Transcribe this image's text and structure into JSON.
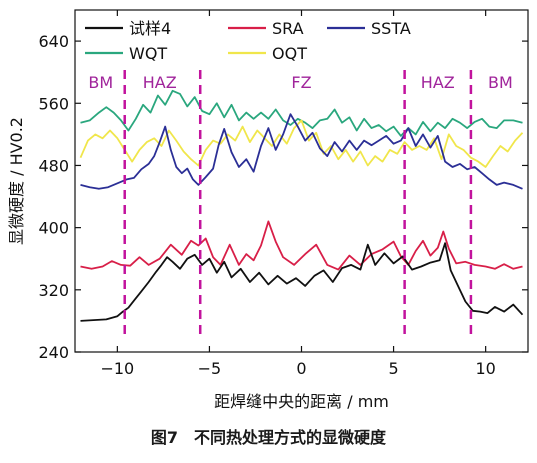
{
  "caption": "图7　不同热处理方式的显微硬度",
  "chart_data": {
    "type": "line",
    "xlabel": "距焊缝中央的距离 / mm",
    "ylabel": "显微硬度 / HV0.2",
    "xlim": [
      -12.3,
      12.3
    ],
    "ylim": [
      240,
      680
    ],
    "xticks": [
      -10,
      -5,
      0,
      5,
      10
    ],
    "xtick_labels": [
      "−10",
      "−5",
      "0",
      "5",
      "10"
    ],
    "yticks": [
      240,
      320,
      400,
      480,
      560,
      640
    ],
    "grid": false,
    "legend_position": "top",
    "zone_boundaries_x": [
      -9.6,
      -5.5,
      5.6,
      9.2
    ],
    "zone_labels": [
      {
        "label": "BM",
        "x": -10.9
      },
      {
        "label": "HAZ",
        "x": -7.7
      },
      {
        "label": "FZ",
        "x": 0
      },
      {
        "label": "HAZ",
        "x": 7.4
      },
      {
        "label": "BM",
        "x": 10.8
      }
    ],
    "series": [
      {
        "name": "试样4",
        "color": "#111111",
        "points": [
          [
            -12,
            280
          ],
          [
            -11.3,
            281
          ],
          [
            -10.6,
            282
          ],
          [
            -10,
            286
          ],
          [
            -9.7,
            292
          ],
          [
            -9.4,
            297
          ],
          [
            -9.1,
            306
          ],
          [
            -8.7,
            318
          ],
          [
            -8.3,
            330
          ],
          [
            -7.9,
            343
          ],
          [
            -7.6,
            352
          ],
          [
            -7.3,
            362
          ],
          [
            -7.0,
            356
          ],
          [
            -6.6,
            347
          ],
          [
            -6.2,
            360
          ],
          [
            -5.8,
            365
          ],
          [
            -5.4,
            352
          ],
          [
            -5.0,
            360
          ],
          [
            -4.6,
            342
          ],
          [
            -4.2,
            356
          ],
          [
            -3.8,
            336
          ],
          [
            -3.3,
            347
          ],
          [
            -2.8,
            330
          ],
          [
            -2.3,
            342
          ],
          [
            -1.8,
            327
          ],
          [
            -1.3,
            338
          ],
          [
            -0.8,
            328
          ],
          [
            -0.3,
            335
          ],
          [
            0.2,
            325
          ],
          [
            0.7,
            338
          ],
          [
            1.2,
            345
          ],
          [
            1.7,
            330
          ],
          [
            2.2,
            348
          ],
          [
            2.7,
            352
          ],
          [
            3.2,
            346
          ],
          [
            3.6,
            378
          ],
          [
            4.0,
            352
          ],
          [
            4.5,
            367
          ],
          [
            5.0,
            354
          ],
          [
            5.5,
            363
          ],
          [
            6.0,
            346
          ],
          [
            6.5,
            350
          ],
          [
            7.0,
            355
          ],
          [
            7.5,
            358
          ],
          [
            7.8,
            380
          ],
          [
            8.1,
            345
          ],
          [
            8.5,
            325
          ],
          [
            8.9,
            305
          ],
          [
            9.3,
            293
          ],
          [
            9.7,
            292
          ],
          [
            10.1,
            290
          ],
          [
            10.5,
            298
          ],
          [
            11.0,
            292
          ],
          [
            11.5,
            301
          ],
          [
            12,
            288
          ]
        ]
      },
      {
        "name": "SRA",
        "color": "#d81f48",
        "points": [
          [
            -12,
            350
          ],
          [
            -11.4,
            347
          ],
          [
            -10.8,
            350
          ],
          [
            -10.3,
            357
          ],
          [
            -9.8,
            352
          ],
          [
            -9.3,
            351
          ],
          [
            -8.8,
            362
          ],
          [
            -8.3,
            352
          ],
          [
            -7.7,
            360
          ],
          [
            -7.1,
            378
          ],
          [
            -6.5,
            365
          ],
          [
            -6.0,
            383
          ],
          [
            -5.6,
            377
          ],
          [
            -5.2,
            386
          ],
          [
            -4.8,
            362
          ],
          [
            -4.4,
            352
          ],
          [
            -3.9,
            378
          ],
          [
            -3.4,
            352
          ],
          [
            -3.0,
            366
          ],
          [
            -2.6,
            358
          ],
          [
            -2.2,
            377
          ],
          [
            -1.8,
            408
          ],
          [
            -1.4,
            382
          ],
          [
            -1.0,
            362
          ],
          [
            -0.4,
            352
          ],
          [
            0.2,
            366
          ],
          [
            0.8,
            378
          ],
          [
            1.4,
            352
          ],
          [
            2.0,
            346
          ],
          [
            2.6,
            364
          ],
          [
            3.2,
            352
          ],
          [
            3.8,
            366
          ],
          [
            4.4,
            372
          ],
          [
            5.0,
            382
          ],
          [
            5.4,
            363
          ],
          [
            5.8,
            352
          ],
          [
            6.2,
            370
          ],
          [
            6.6,
            383
          ],
          [
            7.0,
            364
          ],
          [
            7.4,
            374
          ],
          [
            7.7,
            395
          ],
          [
            8.0,
            373
          ],
          [
            8.4,
            354
          ],
          [
            8.9,
            356
          ],
          [
            9.4,
            352
          ],
          [
            10.0,
            350
          ],
          [
            10.5,
            347
          ],
          [
            11.0,
            353
          ],
          [
            11.5,
            347
          ],
          [
            12,
            350
          ]
        ]
      },
      {
        "name": "SSTA",
        "color": "#2b2f96",
        "points": [
          [
            -12,
            455
          ],
          [
            -11.5,
            452
          ],
          [
            -11.0,
            450
          ],
          [
            -10.5,
            452
          ],
          [
            -10.0,
            457
          ],
          [
            -9.5,
            462
          ],
          [
            -9.1,
            464
          ],
          [
            -8.7,
            475
          ],
          [
            -8.3,
            482
          ],
          [
            -8.0,
            492
          ],
          [
            -7.7,
            510
          ],
          [
            -7.4,
            530
          ],
          [
            -7.1,
            500
          ],
          [
            -6.8,
            478
          ],
          [
            -6.5,
            470
          ],
          [
            -6.2,
            476
          ],
          [
            -5.9,
            462
          ],
          [
            -5.6,
            455
          ],
          [
            -5.2,
            465
          ],
          [
            -4.8,
            476
          ],
          [
            -4.5,
            506
          ],
          [
            -4.2,
            527
          ],
          [
            -3.8,
            497
          ],
          [
            -3.4,
            478
          ],
          [
            -3.0,
            488
          ],
          [
            -2.6,
            472
          ],
          [
            -2.2,
            505
          ],
          [
            -1.8,
            528
          ],
          [
            -1.4,
            500
          ],
          [
            -1.0,
            520
          ],
          [
            -0.6,
            546
          ],
          [
            -0.2,
            530
          ],
          [
            0.2,
            512
          ],
          [
            0.6,
            522
          ],
          [
            1.0,
            502
          ],
          [
            1.4,
            492
          ],
          [
            1.8,
            510
          ],
          [
            2.2,
            498
          ],
          [
            2.6,
            512
          ],
          [
            3.0,
            500
          ],
          [
            3.4,
            512
          ],
          [
            3.8,
            506
          ],
          [
            4.2,
            512
          ],
          [
            4.6,
            518
          ],
          [
            5.0,
            508
          ],
          [
            5.4,
            512
          ],
          [
            5.8,
            528
          ],
          [
            6.2,
            505
          ],
          [
            6.6,
            520
          ],
          [
            7.0,
            503
          ],
          [
            7.4,
            518
          ],
          [
            7.8,
            485
          ],
          [
            8.2,
            478
          ],
          [
            8.6,
            482
          ],
          [
            9.0,
            475
          ],
          [
            9.4,
            478
          ],
          [
            9.8,
            470
          ],
          [
            10.2,
            462
          ],
          [
            10.6,
            455
          ],
          [
            11.0,
            458
          ],
          [
            11.5,
            455
          ],
          [
            12,
            450
          ]
        ]
      },
      {
        "name": "WQT",
        "color": "#2aa77e",
        "points": [
          [
            -12,
            535
          ],
          [
            -11.5,
            538
          ],
          [
            -11.0,
            548
          ],
          [
            -10.6,
            555
          ],
          [
            -10.2,
            548
          ],
          [
            -9.8,
            538
          ],
          [
            -9.4,
            525
          ],
          [
            -9.0,
            540
          ],
          [
            -8.6,
            558
          ],
          [
            -8.2,
            548
          ],
          [
            -7.8,
            570
          ],
          [
            -7.4,
            558
          ],
          [
            -7.0,
            576
          ],
          [
            -6.6,
            572
          ],
          [
            -6.2,
            556
          ],
          [
            -5.8,
            568
          ],
          [
            -5.4,
            550
          ],
          [
            -5.0,
            546
          ],
          [
            -4.6,
            560
          ],
          [
            -4.2,
            542
          ],
          [
            -3.8,
            558
          ],
          [
            -3.4,
            538
          ],
          [
            -3.0,
            548
          ],
          [
            -2.6,
            540
          ],
          [
            -2.2,
            548
          ],
          [
            -1.8,
            540
          ],
          [
            -1.4,
            552
          ],
          [
            -1.0,
            538
          ],
          [
            -0.6,
            532
          ],
          [
            -0.2,
            540
          ],
          [
            0.2,
            535
          ],
          [
            0.6,
            528
          ],
          [
            1.0,
            538
          ],
          [
            1.4,
            540
          ],
          [
            1.8,
            552
          ],
          [
            2.2,
            535
          ],
          [
            2.6,
            542
          ],
          [
            3.0,
            525
          ],
          [
            3.4,
            540
          ],
          [
            3.8,
            528
          ],
          [
            4.2,
            532
          ],
          [
            4.6,
            524
          ],
          [
            5.0,
            530
          ],
          [
            5.4,
            518
          ],
          [
            5.8,
            528
          ],
          [
            6.2,
            520
          ],
          [
            6.6,
            536
          ],
          [
            7.0,
            524
          ],
          [
            7.4,
            535
          ],
          [
            7.8,
            528
          ],
          [
            8.2,
            540
          ],
          [
            8.6,
            535
          ],
          [
            9.0,
            528
          ],
          [
            9.4,
            536
          ],
          [
            9.8,
            540
          ],
          [
            10.2,
            530
          ],
          [
            10.6,
            528
          ],
          [
            11.0,
            538
          ],
          [
            11.5,
            538
          ],
          [
            12,
            535
          ]
        ]
      },
      {
        "name": "OQT",
        "color": "#f0e64b",
        "points": [
          [
            -12,
            490
          ],
          [
            -11.6,
            512
          ],
          [
            -11.2,
            520
          ],
          [
            -10.8,
            515
          ],
          [
            -10.4,
            525
          ],
          [
            -10.0,
            515
          ],
          [
            -9.6,
            500
          ],
          [
            -9.2,
            485
          ],
          [
            -8.8,
            500
          ],
          [
            -8.4,
            510
          ],
          [
            -8.0,
            515
          ],
          [
            -7.6,
            505
          ],
          [
            -7.2,
            525
          ],
          [
            -6.8,
            512
          ],
          [
            -6.4,
            498
          ],
          [
            -6.0,
            488
          ],
          [
            -5.6,
            480
          ],
          [
            -5.2,
            500
          ],
          [
            -4.8,
            512
          ],
          [
            -4.4,
            508
          ],
          [
            -4.0,
            520
          ],
          [
            -3.6,
            512
          ],
          [
            -3.2,
            530
          ],
          [
            -2.8,
            510
          ],
          [
            -2.4,
            525
          ],
          [
            -2.0,
            515
          ],
          [
            -1.6,
            505
          ],
          [
            -1.2,
            520
          ],
          [
            -0.8,
            508
          ],
          [
            -0.4,
            528
          ],
          [
            0.0,
            538
          ],
          [
            0.4,
            512
          ],
          [
            0.8,
            522
          ],
          [
            1.2,
            495
          ],
          [
            1.6,
            505
          ],
          [
            2.0,
            488
          ],
          [
            2.4,
            500
          ],
          [
            2.8,
            485
          ],
          [
            3.2,
            498
          ],
          [
            3.6,
            480
          ],
          [
            4.0,
            492
          ],
          [
            4.4,
            485
          ],
          [
            4.8,
            500
          ],
          [
            5.2,
            495
          ],
          [
            5.6,
            510
          ],
          [
            6.0,
            500
          ],
          [
            6.4,
            505
          ],
          [
            6.8,
            500
          ],
          [
            7.2,
            515
          ],
          [
            7.6,
            488
          ],
          [
            8.0,
            520
          ],
          [
            8.4,
            505
          ],
          [
            8.8,
            500
          ],
          [
            9.2,
            490
          ],
          [
            9.6,
            485
          ],
          [
            10.0,
            478
          ],
          [
            10.4,
            492
          ],
          [
            10.8,
            505
          ],
          [
            11.2,
            498
          ],
          [
            11.6,
            512
          ],
          [
            12,
            522
          ]
        ]
      }
    ]
  }
}
